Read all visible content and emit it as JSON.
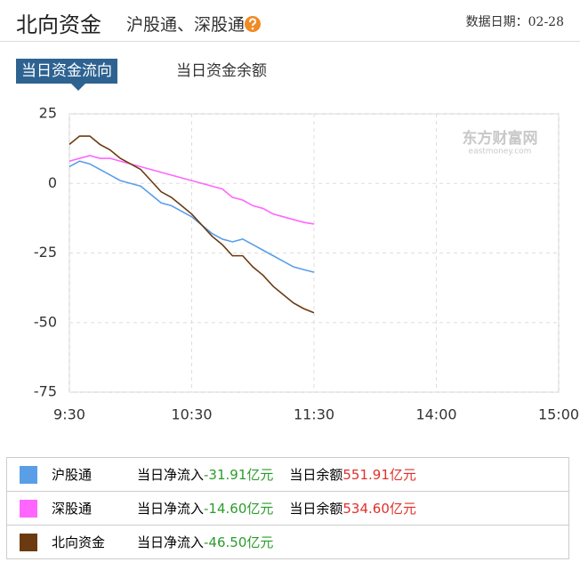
{
  "header": {
    "title": "北向资金",
    "subtitle": "沪股通、深股通",
    "date": "数据日期：02-28"
  },
  "tabs": [
    "当日资金流向",
    "当日资金余额"
  ],
  "chart_data": {
    "type": "line",
    "watermark": "东方财富网",
    "watermark_sub": "eastmoney.com",
    "x": [
      0,
      5,
      10,
      15,
      20,
      25,
      30,
      35,
      40,
      45,
      50,
      55,
      60,
      65,
      70,
      75,
      80,
      85,
      90,
      95,
      100,
      105,
      110,
      115,
      120
    ],
    "xlim": [
      0,
      240
    ],
    "xticks": [
      {
        "value": 0,
        "label": "9:30"
      },
      {
        "value": 60,
        "label": "10:30"
      },
      {
        "value": 120,
        "label": "11:30"
      },
      {
        "value": 180,
        "label": "14:00"
      },
      {
        "value": 240,
        "label": "15:00"
      }
    ],
    "ylim": [
      -75,
      25
    ],
    "yticks": [
      25,
      0,
      -25,
      -50,
      -75
    ],
    "grid": true,
    "series": [
      {
        "name": "沪股通",
        "color": "#5a9ee8",
        "values": [
          6,
          8,
          7,
          5,
          3,
          1,
          0,
          -1,
          -4,
          -7,
          -8,
          -10,
          -12,
          -15,
          -18,
          -20,
          -21,
          -20,
          -22,
          -24,
          -26,
          -28,
          -30,
          -31,
          -31.91
        ]
      },
      {
        "name": "深股通",
        "color": "#ff66ff",
        "values": [
          8,
          9,
          10,
          9,
          9,
          8,
          7,
          6,
          5,
          4,
          3,
          2,
          1,
          0,
          -1,
          -2,
          -5,
          -6,
          -8,
          -9,
          -11,
          -12,
          -13,
          -14,
          -14.6
        ]
      },
      {
        "name": "北向资金",
        "color": "#6b3a10",
        "values": [
          14,
          17,
          17,
          14,
          12,
          9,
          7,
          5,
          1,
          -3,
          -5,
          -8,
          -11,
          -15,
          -19,
          -22,
          -26,
          -26,
          -30,
          -33,
          -37,
          -40,
          -43,
          -45,
          -46.5
        ]
      }
    ]
  },
  "legend_table": {
    "rows": [
      {
        "net_label": "当日净流入",
        "net": "-31.91亿元",
        "balance_label": "当日余额",
        "balance": "551.91亿元"
      },
      {
        "net_label": "当日净流入",
        "net": "-14.60亿元",
        "balance_label": "当日余额",
        "balance": "534.60亿元"
      },
      {
        "net_label": "当日净流入",
        "net": "-46.50亿元"
      }
    ]
  }
}
